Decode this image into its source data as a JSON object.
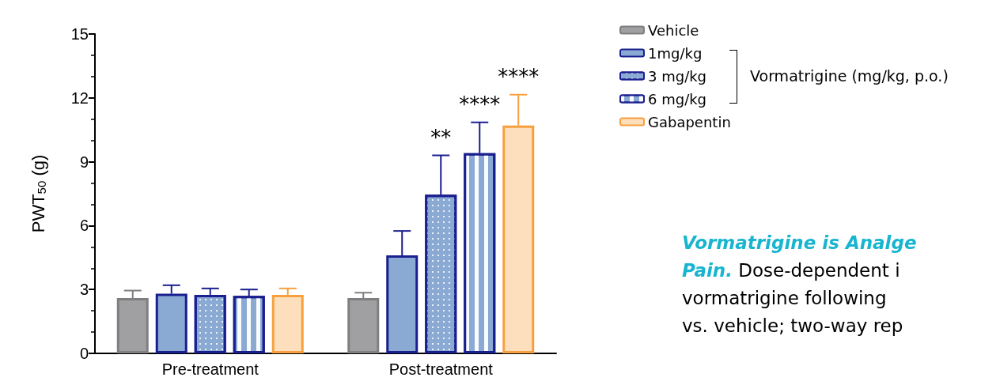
{
  "chart_data": {
    "type": "bar",
    "ylabel": "PWT$_{50}$ (g)",
    "categories": [
      "Pre-treatment",
      "Post-treatment"
    ],
    "series": [
      {
        "name": "Vehicle",
        "color": "#a0a0a3",
        "values": [
          2.6,
          2.6
        ],
        "errors": [
          [
            2.6,
            2.95
          ],
          [
            2.6,
            2.85
          ]
        ]
      },
      {
        "name": "1mg/kg",
        "color": "#8aaad4",
        "values": [
          2.8,
          4.6
        ],
        "errors": [
          [
            2.8,
            3.2
          ],
          [
            4.6,
            5.75
          ]
        ]
      },
      {
        "name": "3 mg/kg",
        "color": "#8aaad4",
        "values": [
          2.75,
          7.45
        ],
        "errors": [
          [
            2.75,
            3.05
          ],
          [
            7.45,
            9.3
          ]
        ]
      },
      {
        "name": "6 mg/kg",
        "color": "#8aaad4",
        "values": [
          2.7,
          9.4
        ],
        "errors": [
          [
            2.7,
            3.0
          ],
          [
            9.4,
            10.85
          ]
        ]
      },
      {
        "name": "Gabapentin",
        "color": "#fddfbd",
        "values": [
          2.75,
          10.7
        ],
        "errors": [
          [
            2.75,
            3.05
          ],
          [
            10.7,
            12.15
          ]
        ]
      }
    ],
    "ylim": [
      0,
      15
    ],
    "yticks": [
      0,
      3,
      6,
      9,
      12,
      15
    ],
    "grid": false,
    "legend": "top right",
    "annotations": [
      "Vormatrigine (mg/kg, p.o.)",
      "**",
      "****",
      "****",
      "Vormatrigine is Analge",
      "Pain.",
      "Dose-dependent i",
      "vormatrigine following",
      "vs. vehicle; two-way rep"
    ]
  }
}
